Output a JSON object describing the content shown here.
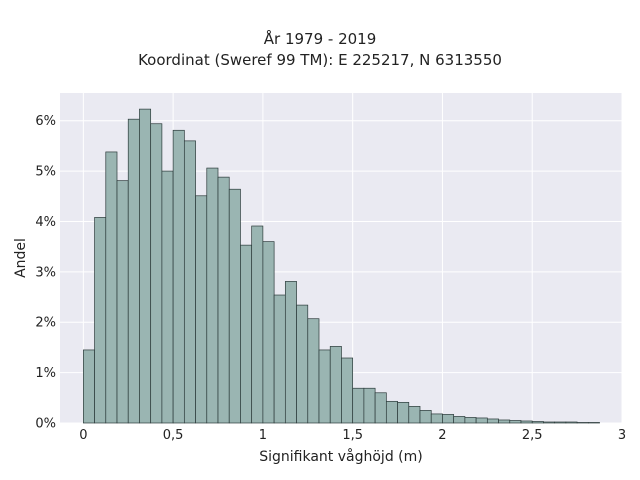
{
  "chart_data": {
    "type": "bar",
    "title": "År 1979 - 2019",
    "subtitle": "Koordinat (Sweref 99 TM): E 225217, N 6313550",
    "xlabel": "Signifikant våghöjd (m)",
    "ylabel": "Andel",
    "xlim": [
      -0.13,
      3.0
    ],
    "ylim": [
      0,
      6.55
    ],
    "xticks": [
      {
        "value": 0,
        "label": "0"
      },
      {
        "value": 0.5,
        "label": "0,5"
      },
      {
        "value": 1,
        "label": "1"
      },
      {
        "value": 1.5,
        "label": "1,5"
      },
      {
        "value": 2,
        "label": "2"
      },
      {
        "value": 2.5,
        "label": "2,5"
      },
      {
        "value": 3,
        "label": "3"
      }
    ],
    "yticks": [
      {
        "value": 0,
        "label": "0%"
      },
      {
        "value": 1,
        "label": "1%"
      },
      {
        "value": 2,
        "label": "2%"
      },
      {
        "value": 3,
        "label": "3%"
      },
      {
        "value": 4,
        "label": "4%"
      },
      {
        "value": 5,
        "label": "5%"
      },
      {
        "value": 6,
        "label": "6%"
      }
    ],
    "grid": true,
    "bar_color": "#9ab5b2",
    "bar_edge_color": "#2b3a3a",
    "background_color": "#eaeaf2",
    "bin_width": 0.0625,
    "bin_start": 0.0,
    "values": [
      1.45,
      4.08,
      5.38,
      4.81,
      6.03,
      6.23,
      5.94,
      5.0,
      5.81,
      5.6,
      4.51,
      5.06,
      4.88,
      4.64,
      3.53,
      3.91,
      3.6,
      2.54,
      2.81,
      2.34,
      2.07,
      1.45,
      1.52,
      1.29,
      0.69,
      0.69,
      0.6,
      0.43,
      0.41,
      0.33,
      0.25,
      0.18,
      0.17,
      0.13,
      0.11,
      0.1,
      0.08,
      0.06,
      0.05,
      0.04,
      0.03,
      0.02,
      0.02,
      0.02,
      0.01,
      0.01
    ]
  }
}
